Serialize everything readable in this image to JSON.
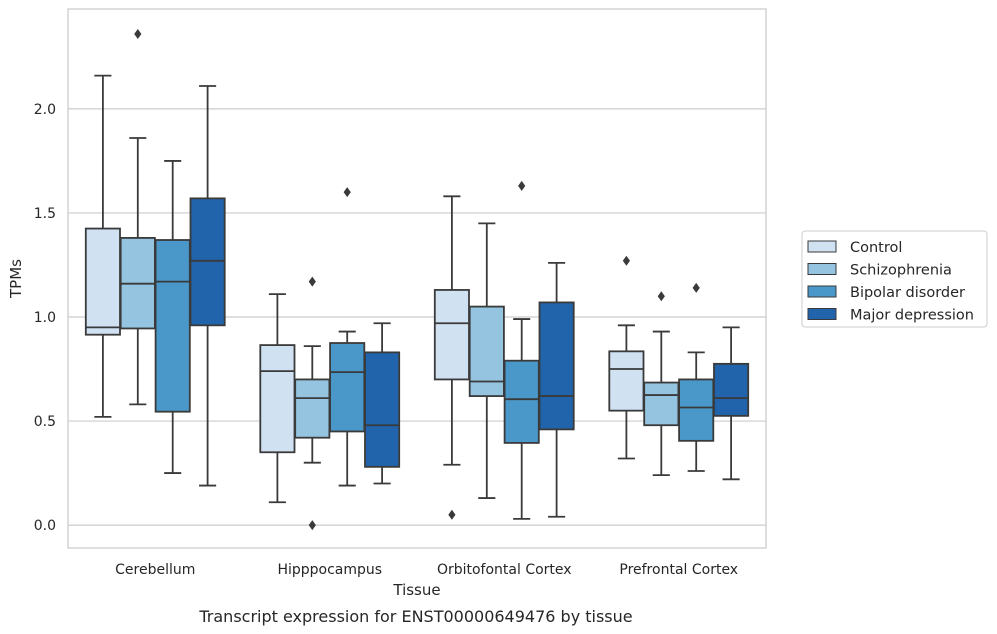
{
  "caption": "Transcript expression for ENST00000649476 by tissue",
  "chart_data": {
    "type": "box",
    "title": "",
    "xlabel": "Tissue",
    "ylabel": "TPMs",
    "ylim": [
      -0.11,
      2.48
    ],
    "yticks": [
      "0.0",
      "0.5",
      "1.0",
      "1.5",
      "2.0"
    ],
    "grid": "horizontal",
    "legend_position": "right",
    "categories": [
      "Cerebellum",
      "Hipppocampus",
      "Orbitofontal Cortex",
      "Prefrontal Cortex"
    ],
    "series": [
      {
        "name": "Control",
        "color": "#d0e1f2",
        "boxes": [
          {
            "whislo": 0.52,
            "q1": 0.915,
            "med": 0.95,
            "q3": 1.425,
            "whishi": 2.16,
            "fliers": []
          },
          {
            "whislo": 0.11,
            "q1": 0.35,
            "med": 0.74,
            "q3": 0.865,
            "whishi": 1.11,
            "fliers": []
          },
          {
            "whislo": 0.29,
            "q1": 0.7,
            "med": 0.97,
            "q3": 1.13,
            "whishi": 1.58,
            "fliers": [
              0.05
            ]
          },
          {
            "whislo": 0.32,
            "q1": 0.55,
            "med": 0.75,
            "q3": 0.835,
            "whishi": 0.96,
            "fliers": [
              1.27
            ]
          }
        ]
      },
      {
        "name": "Schizophrenia",
        "color": "#94c4df",
        "boxes": [
          {
            "whislo": 0.58,
            "q1": 0.945,
            "med": 1.16,
            "q3": 1.38,
            "whishi": 1.86,
            "fliers": [
              2.36
            ]
          },
          {
            "whislo": 0.3,
            "q1": 0.42,
            "med": 0.61,
            "q3": 0.7,
            "whishi": 0.86,
            "fliers": [
              1.17,
              0.0
            ]
          },
          {
            "whislo": 0.13,
            "q1": 0.62,
            "med": 0.69,
            "q3": 1.05,
            "whishi": 1.45,
            "fliers": []
          },
          {
            "whislo": 0.24,
            "q1": 0.48,
            "med": 0.625,
            "q3": 0.685,
            "whishi": 0.93,
            "fliers": [
              1.1
            ]
          }
        ]
      },
      {
        "name": "Bipolar disorder",
        "color": "#4a98c9",
        "boxes": [
          {
            "whislo": 0.25,
            "q1": 0.545,
            "med": 1.17,
            "q3": 1.37,
            "whishi": 1.75,
            "fliers": []
          },
          {
            "whislo": 0.19,
            "q1": 0.45,
            "med": 0.735,
            "q3": 0.875,
            "whishi": 0.93,
            "fliers": [
              1.6
            ]
          },
          {
            "whislo": 0.03,
            "q1": 0.395,
            "med": 0.605,
            "q3": 0.79,
            "whishi": 0.99,
            "fliers": [
              1.63
            ]
          },
          {
            "whislo": 0.26,
            "q1": 0.405,
            "med": 0.565,
            "q3": 0.7,
            "whishi": 0.83,
            "fliers": [
              1.14
            ]
          }
        ]
      },
      {
        "name": "Major depression",
        "color": "#2164ab",
        "boxes": [
          {
            "whislo": 0.19,
            "q1": 0.96,
            "med": 1.27,
            "q3": 1.57,
            "whishi": 2.11,
            "fliers": []
          },
          {
            "whislo": 0.2,
            "q1": 0.28,
            "med": 0.48,
            "q3": 0.83,
            "whishi": 0.97,
            "fliers": []
          },
          {
            "whislo": 0.04,
            "q1": 0.46,
            "med": 0.62,
            "q3": 1.07,
            "whishi": 1.26,
            "fliers": []
          },
          {
            "whislo": 0.22,
            "q1": 0.525,
            "med": 0.61,
            "q3": 0.775,
            "whishi": 0.95,
            "fliers": []
          }
        ]
      }
    ]
  }
}
